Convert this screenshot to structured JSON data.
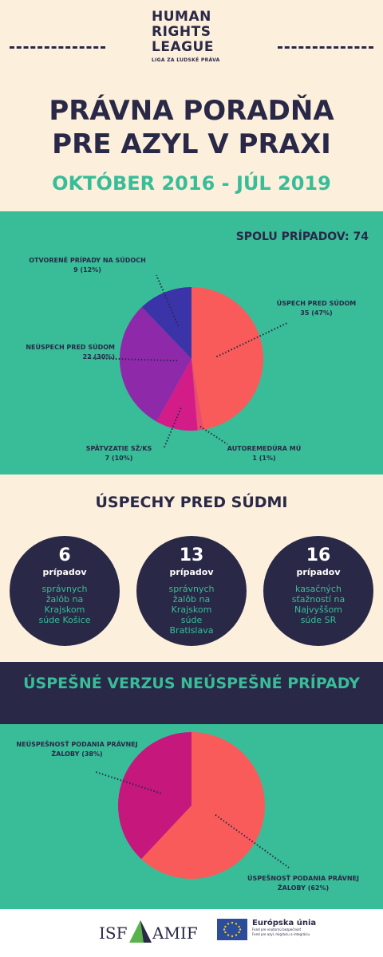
{
  "header": {
    "logo_lines": [
      "HUMAN",
      "RIGHTS",
      "LEAGUE"
    ],
    "logo_sub": "LIGA ZA ĽUDSKÉ PRÁVA",
    "title_lines": [
      "PRÁVNA PORADŇA",
      "PRE AZYL V PRAXI"
    ],
    "period": "OKTÓBER 2016 - JÚL 2019"
  },
  "chart_data": [
    {
      "type": "pie",
      "title": "SPOLU PRÍPADOV: 74",
      "slices": [
        {
          "label": "ÚSPECH PRED SÚDOM",
          "value": 35,
          "display": "35 (47%)",
          "color": "#f95b5b"
        },
        {
          "label": "AUTOREMEDÚRA MÚ",
          "value": 1,
          "display": "1 (1%)",
          "color": "#ee4a6d"
        },
        {
          "label": "SPÄTVZATIE SŽ/KS",
          "value": 7,
          "display": "7 (10%)",
          "color": "#d31c88"
        },
        {
          "label": "NEÚSPECH PRED SÚDOM",
          "value": 22,
          "display": "22 (30%)",
          "color": "#8e2aaa"
        },
        {
          "label": "OTVORENÉ PRÍPADY NA SÚDOCH",
          "value": 9,
          "display": "9 (12%)",
          "color": "#3b34a8"
        }
      ]
    },
    {
      "type": "pie",
      "title": "ÚSPEŠNÉ VERZUS NEÚSPEŠNÉ PRÍPADY",
      "slices": [
        {
          "label": "ÚSPEŠNOSŤ PODANIA PRÁVNEJ ŽALOBY",
          "value": 62,
          "display": "(62%)",
          "color": "#f95b5b"
        },
        {
          "label": "NEÚSPEŠNOSŤ PODANIA PRÁVNEJ ŽALOBY",
          "value": 38,
          "display": "(38%)",
          "color": "#c5177c"
        }
      ]
    }
  ],
  "successes": {
    "title": "ÚSPECHY PRED SÚDMI",
    "items": [
      {
        "number": "6",
        "unit": "prípadov",
        "desc": "správnych žalôb na Krajskom súde Košice"
      },
      {
        "number": "13",
        "unit": "prípadov",
        "desc": "správnych žalôb na Krajskom súde Bratislava"
      },
      {
        "number": "16",
        "unit": "prípadov",
        "desc": "kasačných sťažností na Najvyššom súde SR"
      }
    ]
  },
  "footer": {
    "isf": "ISF",
    "amif": "AMIF",
    "eu_title": "Európska únia",
    "eu_sub1": "Fond pre vnútornú bezpečnosť",
    "eu_sub2": "Fond pre azyl, migráciu a integráciu"
  },
  "colors": {
    "navy": "#2a2847",
    "teal": "#38bd98",
    "cream": "#fcf0dc"
  }
}
